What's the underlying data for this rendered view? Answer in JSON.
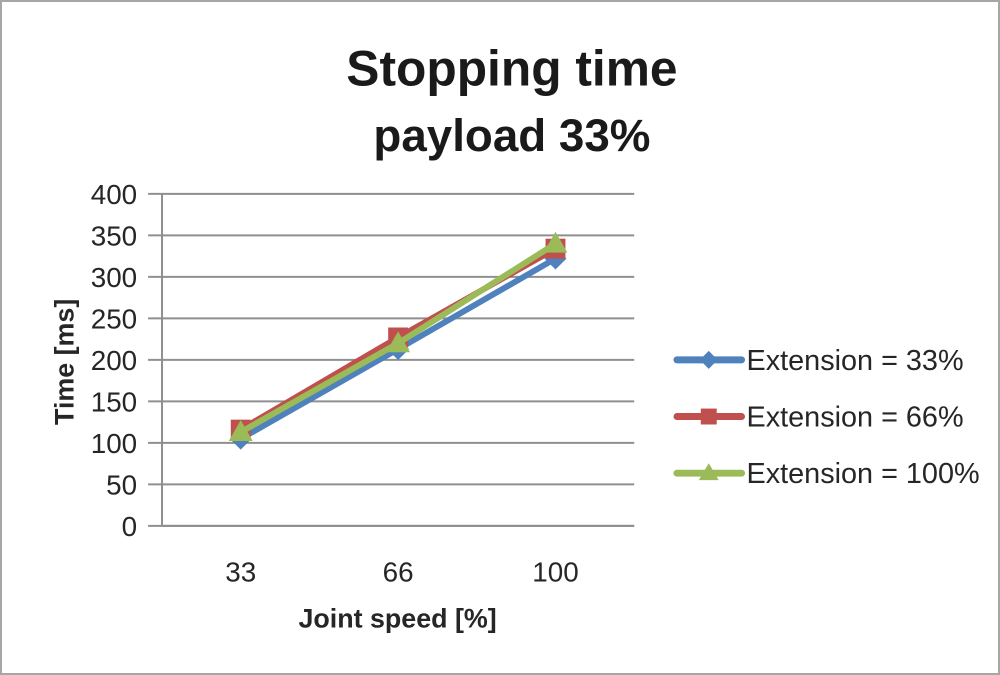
{
  "chart_data": {
    "type": "line",
    "title": "Stopping time",
    "subtitle": "payload 33%",
    "xlabel": "Joint speed [%]",
    "ylabel": "Time [ms]",
    "categories": [
      "33",
      "66",
      "100"
    ],
    "series": [
      {
        "name": "Extension = 33%",
        "color": "#4f81bd",
        "marker": "diamond",
        "values": [
          105,
          213,
          322
        ]
      },
      {
        "name": "Extension = 66%",
        "color": "#c0504d",
        "marker": "square",
        "values": [
          116,
          227,
          334
        ]
      },
      {
        "name": "Extension = 100%",
        "color": "#9bbb59",
        "marker": "triangle",
        "values": [
          113,
          220,
          340
        ]
      }
    ],
    "ylim": [
      0,
      400
    ],
    "yticks": [
      0,
      50,
      100,
      150,
      200,
      250,
      300,
      350,
      400
    ],
    "grid": true,
    "grid_color": "#8f8f8f",
    "legend_position": "right"
  },
  "frame": {
    "border_color": "#a6a6a6"
  }
}
